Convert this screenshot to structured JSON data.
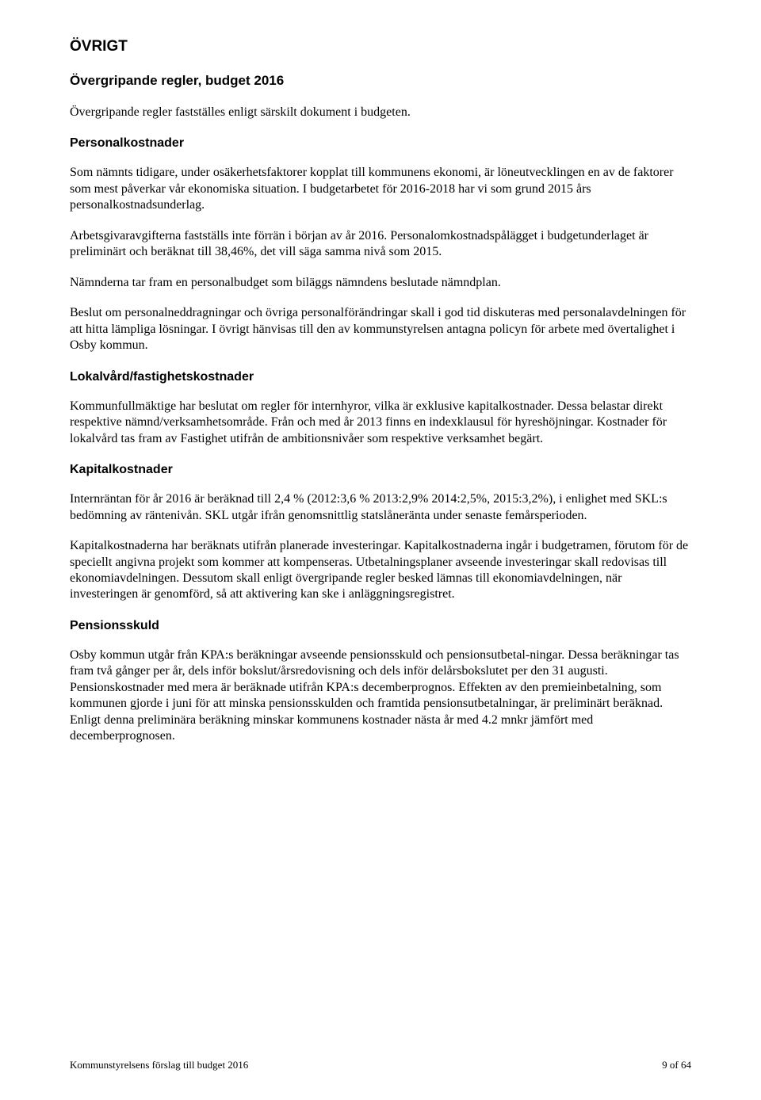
{
  "headings": {
    "main": "ÖVRIGT",
    "sub": "Övergripande regler, budget 2016",
    "personal": "Personalkostnader",
    "lokal": "Lokalvård/fastighetskostnader",
    "kapital": "Kapitalkostnader",
    "pension": "Pensionsskuld"
  },
  "paragraphs": {
    "intro": "Övergripande regler fastställes enligt särskilt dokument i budgeten.",
    "personal1": "Som nämnts tidigare, under osäkerhetsfaktorer kopplat till kommunens ekonomi, är löneutvecklingen en av de faktorer som mest påverkar vår ekonomiska situation. I budgetarbetet för 2016-2018 har vi som grund 2015 års personalkostnadsunderlag.",
    "personal2": "Arbetsgivaravgifterna fastställs inte förrän i början av år 2016. Personalomkostnadspålägget i budgetunderlaget är preliminärt och beräknat till 38,46%, det vill säga samma nivå som 2015.",
    "personal3": "Nämnderna tar fram en personalbudget som biläggs nämndens beslutade nämndplan.",
    "personal4": "Beslut om personalneddragningar och övriga personalförändringar skall i god tid diskuteras med personalavdelningen för att hitta lämpliga lösningar. I övrigt hänvisas till den av kommunstyrelsen antagna policyn för arbete med övertalighet i Osby kommun.",
    "lokal1": "Kommunfullmäktige har beslutat om regler för internhyror, vilka är exklusive kapitalkostnader. Dessa belastar direkt respektive nämnd/verksamhetsområde. Från och med år 2013 finns en indexklausul för hyreshöjningar. Kostnader för lokalvård tas fram av Fastighet utifrån de ambitionsnivåer som respektive verksamhet begärt.",
    "kapital1": "Internräntan för år 2016 är beräknad till 2,4 % (2012:3,6 % 2013:2,9% 2014:2,5%, 2015:3,2%), i enlighet med SKL:s bedömning av räntenivån. SKL utgår ifrån genomsnittlig statslåneränta under senaste femårsperioden.",
    "kapital2": "Kapitalkostnaderna har beräknats utifrån planerade investeringar. Kapitalkostnaderna ingår i budgetramen, förutom för de speciellt angivna projekt som kommer att kompenseras. Utbetalningsplaner avseende investeringar skall redovisas till ekonomiavdelningen. Dessutom skall enligt övergripande regler besked lämnas till ekonomiavdelningen, när investeringen är genomförd, så att aktivering kan ske i anläggningsregistret.",
    "pension1": "Osby kommun utgår från KPA:s beräkningar avseende pensionsskuld och pensionsutbetal-ningar. Dessa beräkningar tas fram två gånger per år, dels inför bokslut/årsredovisning och dels inför delårsbokslutet per den 31 augusti. Pensionskostnader med mera är beräknade utifrån KPA:s decemberprognos. Effekten av den premieinbetalning, som kommunen gjorde i juni för att minska pensionsskulden och framtida pensionsutbetalningar, är preliminärt beräknad. Enligt denna preliminära beräkning minskar kommunens kostnader nästa år med 4.2 mnkr jämfört med decemberprognosen."
  },
  "footer": {
    "left": "Kommunstyrelsens förslag till budget 2016",
    "right": "9 of 64"
  }
}
